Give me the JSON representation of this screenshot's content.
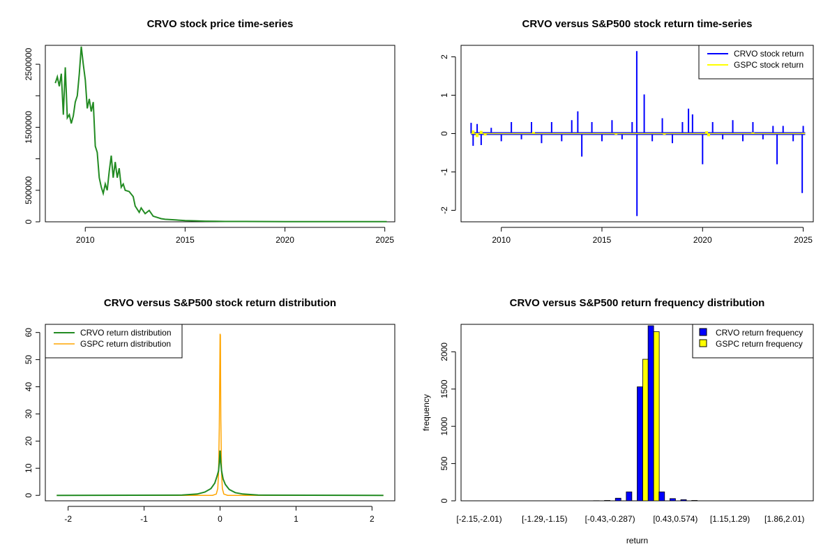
{
  "colors": {
    "crvo_price": "#228B22",
    "crvo_return": "#0000FF",
    "gspc_return": "#FFFF00",
    "crvo_density": "#228B22",
    "gspc_density": "#FFA500",
    "hist_crvo": "#0000FF",
    "hist_gspc": "#FFFF00"
  },
  "chart_data": [
    {
      "type": "line",
      "title": "CRVO stock price time-series",
      "xlabel": "",
      "ylabel": "",
      "xlim": [
        2008.0,
        2025.5
      ],
      "ylim": [
        0,
        2800000
      ],
      "x_ticks": [
        2010,
        2015,
        2020,
        2025
      ],
      "y_ticks": [
        0,
        500000,
        1000000,
        1500000,
        2000000,
        2500000
      ],
      "y_tick_labels": [
        "0",
        "500000",
        "",
        "1500000",
        "",
        "2500000"
      ],
      "series": [
        {
          "name": "CRVO price",
          "points": [
            [
              2008.5,
              2200000
            ],
            [
              2008.6,
              2300000
            ],
            [
              2008.7,
              2150000
            ],
            [
              2008.8,
              2350000
            ],
            [
              2008.9,
              1700000
            ],
            [
              2009.0,
              2450000
            ],
            [
              2009.1,
              1650000
            ],
            [
              2009.2,
              1700000
            ],
            [
              2009.3,
              1560000
            ],
            [
              2009.4,
              1680000
            ],
            [
              2009.5,
              1900000
            ],
            [
              2009.6,
              2000000
            ],
            [
              2009.7,
              2350000
            ],
            [
              2009.8,
              2780000
            ],
            [
              2009.9,
              2500000
            ],
            [
              2010.0,
              2250000
            ],
            [
              2010.1,
              1800000
            ],
            [
              2010.2,
              1950000
            ],
            [
              2010.3,
              1750000
            ],
            [
              2010.4,
              1900000
            ],
            [
              2010.5,
              1200000
            ],
            [
              2010.6,
              1100000
            ],
            [
              2010.7,
              700000
            ],
            [
              2010.8,
              550000
            ],
            [
              2010.9,
              450000
            ],
            [
              2011.0,
              600000
            ],
            [
              2011.1,
              500000
            ],
            [
              2011.2,
              800000
            ],
            [
              2011.3,
              1050000
            ],
            [
              2011.4,
              700000
            ],
            [
              2011.5,
              950000
            ],
            [
              2011.6,
              700000
            ],
            [
              2011.7,
              850000
            ],
            [
              2011.8,
              550000
            ],
            [
              2011.9,
              600000
            ],
            [
              2012.0,
              500000
            ],
            [
              2012.2,
              480000
            ],
            [
              2012.4,
              400000
            ],
            [
              2012.5,
              250000
            ],
            [
              2012.7,
              150000
            ],
            [
              2012.8,
              220000
            ],
            [
              2013.0,
              130000
            ],
            [
              2013.2,
              180000
            ],
            [
              2013.4,
              90000
            ],
            [
              2013.6,
              70000
            ],
            [
              2013.8,
              50000
            ],
            [
              2014.0,
              40000
            ],
            [
              2014.5,
              30000
            ],
            [
              2015.0,
              20000
            ],
            [
              2015.5,
              15000
            ],
            [
              2016.0,
              10000
            ],
            [
              2016.5,
              8000
            ],
            [
              2017.0,
              6000
            ],
            [
              2018.0,
              5000
            ],
            [
              2019.0,
              4000
            ],
            [
              2020.0,
              3000
            ],
            [
              2021.0,
              3000
            ],
            [
              2022.0,
              2500
            ],
            [
              2023.0,
              2000
            ],
            [
              2024.0,
              2000
            ],
            [
              2025.1,
              2000
            ]
          ]
        }
      ]
    },
    {
      "type": "line",
      "title": "CRVO versus S&P500 stock return time-series",
      "xlabel": "",
      "ylabel": "",
      "xlim": [
        2008.0,
        2025.5
      ],
      "ylim": [
        -2.3,
        2.3
      ],
      "x_ticks": [
        2010,
        2015,
        2020,
        2025
      ],
      "y_ticks": [
        -2,
        -1,
        0,
        1,
        2
      ],
      "legend_position": "top-right",
      "series": [
        {
          "name": "CRVO stock return",
          "spikes": [
            [
              2008.5,
              0.28
            ],
            [
              2008.6,
              -0.32
            ],
            [
              2008.8,
              0.25
            ],
            [
              2009.0,
              -0.3
            ],
            [
              2009.5,
              0.15
            ],
            [
              2010.0,
              -0.2
            ],
            [
              2010.5,
              0.3
            ],
            [
              2011.0,
              -0.15
            ],
            [
              2011.5,
              0.3
            ],
            [
              2012.0,
              -0.25
            ],
            [
              2012.5,
              0.3
            ],
            [
              2013.0,
              -0.2
            ],
            [
              2013.5,
              0.35
            ],
            [
              2013.8,
              0.58
            ],
            [
              2014.0,
              -0.6
            ],
            [
              2014.5,
              0.3
            ],
            [
              2015.0,
              -0.2
            ],
            [
              2015.5,
              0.35
            ],
            [
              2016.0,
              -0.15
            ],
            [
              2016.5,
              0.3
            ],
            [
              2016.73,
              2.15
            ],
            [
              2016.74,
              -2.15
            ],
            [
              2017.1,
              1.02
            ],
            [
              2017.5,
              -0.2
            ],
            [
              2018.0,
              0.4
            ],
            [
              2018.5,
              -0.25
            ],
            [
              2019.0,
              0.3
            ],
            [
              2019.3,
              0.65
            ],
            [
              2019.5,
              0.5
            ],
            [
              2020.0,
              -0.8
            ],
            [
              2020.5,
              0.3
            ],
            [
              2021.0,
              -0.15
            ],
            [
              2021.5,
              0.35
            ],
            [
              2022.0,
              -0.2
            ],
            [
              2022.5,
              0.3
            ],
            [
              2023.0,
              -0.15
            ],
            [
              2023.5,
              0.2
            ],
            [
              2023.7,
              -0.8
            ],
            [
              2024.0,
              0.2
            ],
            [
              2024.5,
              -0.2
            ],
            [
              2024.95,
              -1.55
            ],
            [
              2025.0,
              0.2
            ]
          ]
        },
        {
          "name": "GSPC stock return",
          "spikes": [
            [
              2008.6,
              0.08
            ],
            [
              2008.8,
              -0.09
            ],
            [
              2009.0,
              0.07
            ],
            [
              2009.2,
              -0.05
            ],
            [
              2011.6,
              0.04
            ],
            [
              2015.7,
              -0.03
            ],
            [
              2018.1,
              -0.03
            ],
            [
              2020.2,
              0.06
            ],
            [
              2020.3,
              -0.07
            ],
            [
              2022.5,
              0.03
            ],
            [
              2025.0,
              0.02
            ]
          ]
        }
      ]
    },
    {
      "type": "line",
      "title": "CRVO versus S&P500 stock return distribution",
      "xlabel": "",
      "ylabel": "",
      "xlim": [
        -2.3,
        2.3
      ],
      "ylim": [
        -2,
        63
      ],
      "x_ticks": [
        -2,
        -1,
        0,
        1,
        2
      ],
      "y_ticks": [
        0,
        10,
        20,
        30,
        40,
        50,
        60
      ],
      "legend_position": "top-left",
      "series": [
        {
          "name": "CRVO return distribution",
          "points": [
            [
              -2.15,
              0
            ],
            [
              -0.5,
              0.1
            ],
            [
              -0.3,
              0.5
            ],
            [
              -0.2,
              1.2
            ],
            [
              -0.12,
              2.5
            ],
            [
              -0.07,
              4.5
            ],
            [
              -0.04,
              7
            ],
            [
              -0.02,
              9
            ],
            [
              -0.01,
              12
            ],
            [
              0.0,
              16.5
            ],
            [
              0.01,
              12
            ],
            [
              0.02,
              9
            ],
            [
              0.04,
              6
            ],
            [
              0.07,
              4
            ],
            [
              0.12,
              2.2
            ],
            [
              0.2,
              1.0
            ],
            [
              0.3,
              0.5
            ],
            [
              0.5,
              0.1
            ],
            [
              2.15,
              0
            ]
          ]
        },
        {
          "name": "GSPC return distribution",
          "points": [
            [
              -2.15,
              0
            ],
            [
              -0.1,
              0
            ],
            [
              -0.05,
              0.5
            ],
            [
              -0.03,
              2.5
            ],
            [
              -0.02,
              8
            ],
            [
              -0.01,
              25
            ],
            [
              0.0,
              59.5
            ],
            [
              0.005,
              59
            ],
            [
              0.01,
              28
            ],
            [
              0.02,
              8
            ],
            [
              0.03,
              2.5
            ],
            [
              0.05,
              0.5
            ],
            [
              0.1,
              0
            ],
            [
              2.15,
              0
            ]
          ]
        }
      ]
    },
    {
      "type": "bar",
      "title": "CRVO versus S&P500 return frequency distribution",
      "xlabel": "return",
      "ylabel": "frequency",
      "ylim": [
        0,
        2350
      ],
      "y_ticks": [
        0,
        500,
        1000,
        1500,
        2000
      ],
      "legend_position": "top-right",
      "categories": [
        "[-2.15,-2.01)",
        "[-2.01,-1.86)",
        "[-1.86,-1.72)",
        "[-1.72,-1.58)",
        "[-1.58,-1.43)",
        "[-1.43,-1.29)",
        "[-1.29,-1.15)",
        "[-1.15,-1.00)",
        "[-1.00,-0.86)",
        "[-0.86,-0.72)",
        "[-0.72,-0.57)",
        "[-0.57,-0.43)",
        "[-0.43,-0.287)",
        "[-0.287,-0.143)",
        "[-0.143,0)",
        "[0,0.143)",
        "[0.143,0.287)",
        "[0.287,0.43)",
        "[0.43,0.574)",
        "[0.574,0.717)",
        "[0.717,0.86)",
        "[0.86,1.00)",
        "[1.00,1.15)",
        "[1.15,1.29)",
        "[1.29,1.43)",
        "[1.43,1.58)",
        "[1.58,1.72)",
        "[1.72,1.86)",
        "[1.86,2.01)",
        "[2.01,2.15]"
      ],
      "shown_category_labels": [
        "[-2.15,-2.01)",
        "[-1.29,-1.15)",
        "[-0.43,-0.287)",
        "[0.43,0.574)",
        "[1.15,1.29)",
        "[1.86,2.01)"
      ],
      "series": [
        {
          "name": "CRVO return frequency",
          "values": [
            1,
            0,
            0,
            0,
            0,
            0,
            0,
            0,
            0,
            0,
            0,
            2,
            5,
            35,
            120,
            1530,
            2350,
            120,
            30,
            15,
            5,
            0,
            0,
            0,
            0,
            0,
            0,
            0,
            0,
            1
          ]
        },
        {
          "name": "GSPC return frequency",
          "values": [
            0,
            0,
            0,
            0,
            0,
            0,
            0,
            0,
            0,
            0,
            0,
            0,
            0,
            0,
            0,
            1900,
            2270,
            0,
            0,
            0,
            0,
            0,
            0,
            0,
            0,
            0,
            0,
            0,
            0,
            0
          ]
        }
      ]
    }
  ]
}
